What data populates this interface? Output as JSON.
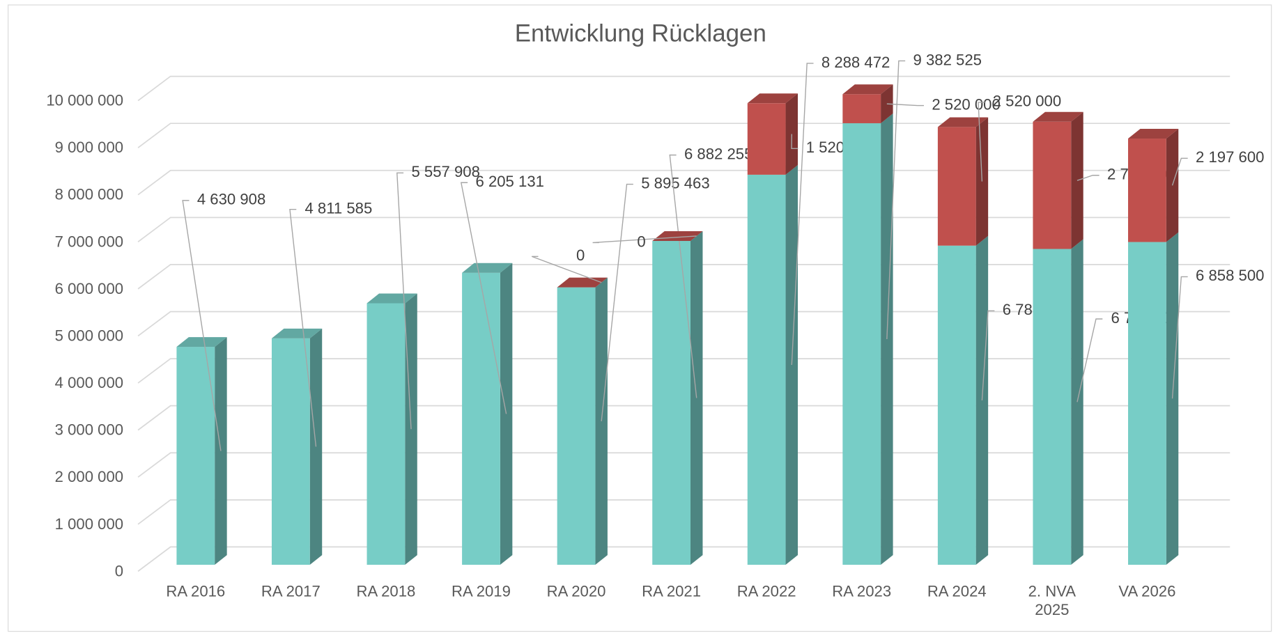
{
  "chart_data": {
    "type": "bar3d_stacked",
    "title": "Entwicklung Rücklagen",
    "categories": [
      "RA 2016",
      "RA 2017",
      "RA 2018",
      "RA 2019",
      "RA 2020",
      "RA 2021",
      "RA 2022",
      "RA 2023",
      "RA 2024",
      "2. NVA\n2025",
      "VA 2026"
    ],
    "series": [
      {
        "color": "#77cdc6",
        "values": [
          4630908,
          4811585,
          5557908,
          6205131,
          5895463,
          6882255,
          8288472,
          9382525,
          6781712,
          6711100,
          6858500
        ],
        "value_labels": [
          "4 630 908",
          "4 811 585",
          "5 557 908",
          "6 205 131",
          "5 895 463",
          "6 882 255",
          "8 288 472",
          "9 382 525",
          "6 781 712",
          "6 711 100",
          "6 858 500"
        ]
      },
      {
        "color": "#c0504d",
        "values": [
          null,
          null,
          null,
          null,
          0,
          0,
          1520000,
          2520000,
          2520000,
          2703700,
          2197600
        ],
        "value_labels": [
          null,
          null,
          null,
          null,
          "0",
          "0",
          "1 520 000",
          "2 520 000",
          "2 520 000",
          "2 703 700",
          "2 197 600"
        ]
      }
    ],
    "ylim": [
      0,
      10000000
    ],
    "yticks": [
      0,
      {
        "value": 1000000,
        "label": "1 000 000"
      },
      {
        "value": 2000000,
        "label": "2 000 000"
      },
      {
        "value": 3000000,
        "label": "3 000 000"
      },
      {
        "value": 4000000,
        "label": "4 000 000"
      },
      {
        "value": 5000000,
        "label": "5 000 000"
      },
      {
        "value": 6000000,
        "label": "6 000 000"
      },
      {
        "value": 7000000,
        "label": "7 000 000"
      },
      {
        "value": 8000000,
        "label": "8 000 000"
      },
      {
        "value": 9000000,
        "label": "9 000 000"
      },
      {
        "value": 10000000,
        "label": "10 000 000"
      }
    ],
    "grid": true
  }
}
